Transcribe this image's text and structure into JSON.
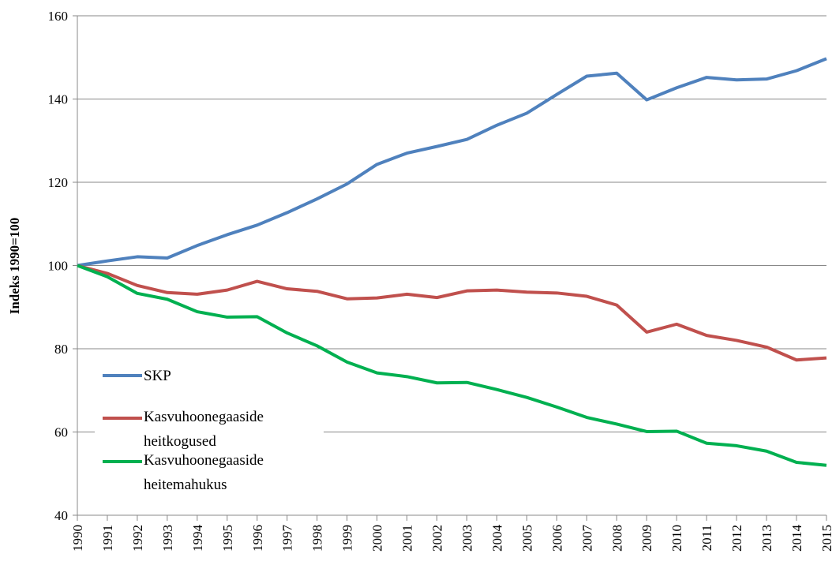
{
  "chart_data": {
    "type": "line",
    "ylabel": "Indeks 1990=100",
    "categories": [
      "1990",
      "1991",
      "1992",
      "1993",
      "1994",
      "1995",
      "1996",
      "1997",
      "1998",
      "1999",
      "2000",
      "2001",
      "2002",
      "2003",
      "2004",
      "2005",
      "2006",
      "2007",
      "2008",
      "2009",
      "2010",
      "2011",
      "2012",
      "2013",
      "2014",
      "2015"
    ],
    "series": [
      {
        "name": "SKP",
        "color": "#4f81bd",
        "values": [
          100,
          101.1,
          102.1,
          101.8,
          104.8,
          107.4,
          109.7,
          112.7,
          116,
          119.6,
          124.3,
          127,
          128.6,
          130.3,
          133.7,
          136.6,
          141.1,
          145.5,
          146.2,
          139.8,
          142.7,
          145.2,
          144.6,
          144.8,
          146.8,
          149.7
        ]
      },
      {
        "name": "Kasvuhoonegaaside heitkogused",
        "color": "#c0504d",
        "values": [
          100,
          98.1,
          95.2,
          93.5,
          93.1,
          94.1,
          96.2,
          94.4,
          93.8,
          92,
          92.2,
          93.1,
          92.3,
          93.9,
          94.1,
          93.6,
          93.4,
          92.6,
          90.5,
          84,
          85.9,
          83.2,
          82,
          80.4,
          77.3,
          77.8
        ]
      },
      {
        "name": "Kasvuhoonegaaside heitemahukus",
        "color": "#00b050",
        "values": [
          100,
          97.3,
          93.3,
          91.9,
          88.9,
          87.6,
          87.7,
          83.8,
          80.7,
          76.8,
          74.2,
          73.3,
          71.8,
          71.9,
          70.2,
          68.3,
          66,
          63.5,
          61.9,
          60.1,
          60.2,
          57.3,
          56.7,
          55.4,
          52.7,
          52
        ]
      }
    ],
    "ylim": [
      40,
      160
    ],
    "yticks": [
      40,
      60,
      80,
      100,
      120,
      140,
      160
    ],
    "grid": true,
    "legend": "left"
  }
}
